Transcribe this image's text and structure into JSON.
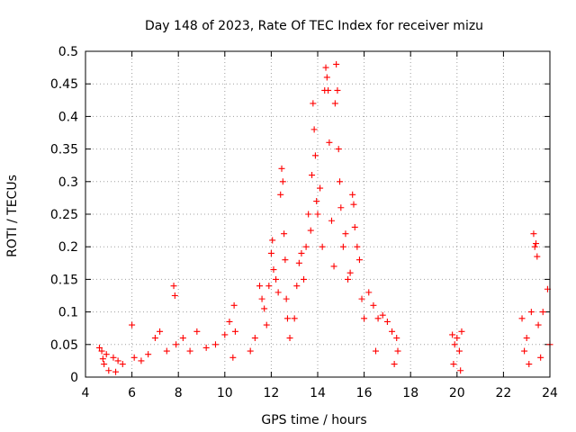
{
  "chart_data": {
    "type": "scatter",
    "title": "Day 148 of 2023, Rate Of TEC Index for receiver mizu",
    "xlabel": "GPS time / hours",
    "ylabel": "ROTI / TECUs",
    "xlim": [
      4,
      24
    ],
    "ylim": [
      0,
      0.5
    ],
    "x_ticks": [
      4,
      6,
      8,
      10,
      12,
      14,
      16,
      18,
      20,
      22,
      24
    ],
    "y_ticks": [
      0,
      0.05,
      0.1,
      0.15,
      0.2,
      0.25,
      0.3,
      0.35,
      0.4,
      0.45,
      0.5
    ],
    "x_tick_labels": [
      "4",
      "6",
      "8",
      "10",
      "12",
      "14",
      "16",
      "18",
      "20",
      "22",
      "24"
    ],
    "y_tick_labels": [
      "0",
      "0.05",
      "0.1",
      "0.15",
      "0.2",
      "0.25",
      "0.3",
      "0.35",
      "0.4",
      "0.45",
      "0.5"
    ],
    "grid": true,
    "marker": "+",
    "color": "#ff0000",
    "series": [
      {
        "name": "ROTI",
        "points": [
          [
            4.6,
            0.045
          ],
          [
            4.7,
            0.04
          ],
          [
            4.8,
            0.02
          ],
          [
            4.9,
            0.035
          ],
          [
            5.0,
            0.01
          ],
          [
            5.2,
            0.03
          ],
          [
            5.4,
            0.025
          ],
          [
            5.6,
            0.02
          ],
          [
            5.3,
            0.008
          ],
          [
            4.75,
            0.028
          ],
          [
            6.0,
            0.08
          ],
          [
            6.1,
            0.03
          ],
          [
            6.4,
            0.025
          ],
          [
            6.7,
            0.035
          ],
          [
            7.0,
            0.06
          ],
          [
            7.2,
            0.07
          ],
          [
            7.5,
            0.04
          ],
          [
            7.8,
            0.14
          ],
          [
            7.85,
            0.125
          ],
          [
            7.9,
            0.05
          ],
          [
            8.2,
            0.06
          ],
          [
            8.5,
            0.04
          ],
          [
            8.8,
            0.07
          ],
          [
            9.2,
            0.045
          ],
          [
            9.6,
            0.05
          ],
          [
            10.0,
            0.065
          ],
          [
            10.2,
            0.085
          ],
          [
            10.4,
            0.11
          ],
          [
            10.45,
            0.07
          ],
          [
            10.35,
            0.03
          ],
          [
            11.1,
            0.04
          ],
          [
            11.3,
            0.06
          ],
          [
            11.5,
            0.14
          ],
          [
            11.6,
            0.12
          ],
          [
            11.7,
            0.105
          ],
          [
            11.8,
            0.08
          ],
          [
            11.9,
            0.14
          ],
          [
            12.0,
            0.19
          ],
          [
            12.05,
            0.21
          ],
          [
            12.1,
            0.165
          ],
          [
            12.2,
            0.15
          ],
          [
            12.3,
            0.13
          ],
          [
            12.4,
            0.28
          ],
          [
            12.45,
            0.32
          ],
          [
            12.5,
            0.3
          ],
          [
            12.55,
            0.22
          ],
          [
            12.6,
            0.18
          ],
          [
            12.65,
            0.12
          ],
          [
            12.7,
            0.09
          ],
          [
            12.8,
            0.06
          ],
          [
            13.0,
            0.09
          ],
          [
            13.1,
            0.14
          ],
          [
            13.2,
            0.175
          ],
          [
            13.3,
            0.19
          ],
          [
            13.4,
            0.15
          ],
          [
            13.5,
            0.2
          ],
          [
            13.6,
            0.25
          ],
          [
            13.7,
            0.225
          ],
          [
            13.75,
            0.31
          ],
          [
            13.8,
            0.42
          ],
          [
            13.85,
            0.38
          ],
          [
            13.9,
            0.34
          ],
          [
            13.95,
            0.27
          ],
          [
            14.0,
            0.25
          ],
          [
            14.1,
            0.29
          ],
          [
            14.2,
            0.2
          ],
          [
            14.3,
            0.44
          ],
          [
            14.35,
            0.475
          ],
          [
            14.4,
            0.46
          ],
          [
            14.45,
            0.44
          ],
          [
            14.5,
            0.36
          ],
          [
            14.6,
            0.24
          ],
          [
            14.7,
            0.17
          ],
          [
            14.75,
            0.42
          ],
          [
            14.8,
            0.48
          ],
          [
            14.85,
            0.44
          ],
          [
            14.9,
            0.35
          ],
          [
            14.95,
            0.3
          ],
          [
            15.0,
            0.26
          ],
          [
            15.1,
            0.2
          ],
          [
            15.2,
            0.22
          ],
          [
            15.3,
            0.15
          ],
          [
            15.4,
            0.16
          ],
          [
            15.5,
            0.28
          ],
          [
            15.55,
            0.265
          ],
          [
            15.6,
            0.23
          ],
          [
            15.7,
            0.2
          ],
          [
            15.8,
            0.18
          ],
          [
            15.9,
            0.12
          ],
          [
            16.0,
            0.09
          ],
          [
            16.2,
            0.13
          ],
          [
            16.4,
            0.11
          ],
          [
            16.6,
            0.09
          ],
          [
            16.8,
            0.095
          ],
          [
            17.0,
            0.085
          ],
          [
            17.2,
            0.07
          ],
          [
            17.4,
            0.06
          ],
          [
            17.45,
            0.04
          ],
          [
            17.3,
            0.02
          ],
          [
            16.5,
            0.04
          ],
          [
            19.8,
            0.065
          ],
          [
            19.9,
            0.05
          ],
          [
            20.0,
            0.06
          ],
          [
            20.1,
            0.04
          ],
          [
            20.2,
            0.07
          ],
          [
            19.85,
            0.02
          ],
          [
            20.15,
            0.01
          ],
          [
            22.8,
            0.09
          ],
          [
            23.0,
            0.06
          ],
          [
            23.2,
            0.1
          ],
          [
            23.3,
            0.22
          ],
          [
            23.35,
            0.2
          ],
          [
            23.4,
            0.205
          ],
          [
            23.45,
            0.185
          ],
          [
            23.5,
            0.08
          ],
          [
            23.7,
            0.1
          ],
          [
            23.9,
            0.135
          ],
          [
            24.0,
            0.05
          ],
          [
            23.6,
            0.03
          ],
          [
            23.1,
            0.02
          ],
          [
            22.9,
            0.04
          ]
        ]
      }
    ]
  }
}
